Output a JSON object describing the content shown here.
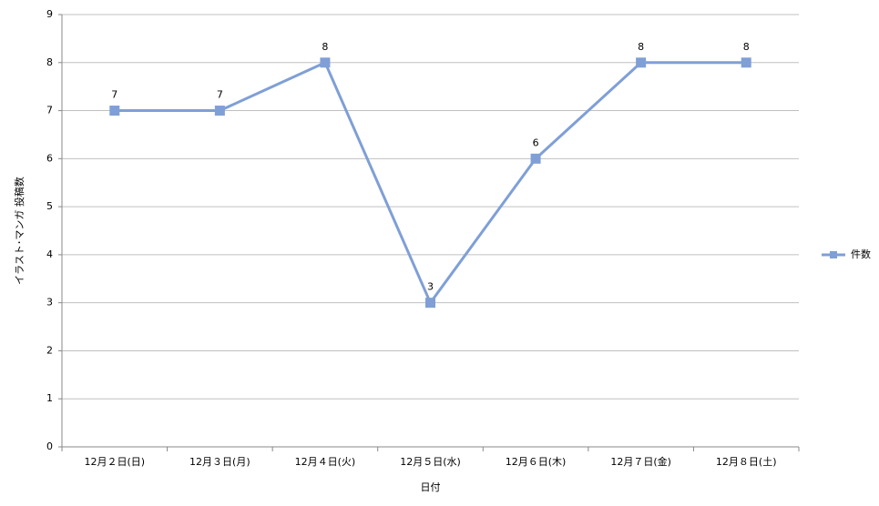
{
  "chart_data": {
    "type": "line",
    "categories": [
      "12月２日(日)",
      "12月３日(月)",
      "12月４日(火)",
      "12月５日(水)",
      "12月６日(木)",
      "12月７日(金)",
      "12月８日(土)"
    ],
    "series": [
      {
        "name": "件数",
        "color": "#7f9fd6",
        "values": [
          7,
          7,
          8,
          3,
          6,
          8,
          8
        ]
      }
    ],
    "ylim": [
      0,
      9
    ],
    "yticks": [
      0,
      1,
      2,
      3,
      4,
      5,
      6,
      7,
      8,
      9
    ],
    "grid": true,
    "xlabel": "日付",
    "ylabel": "イラスト･マンガ 投稿数",
    "legend": "right"
  }
}
